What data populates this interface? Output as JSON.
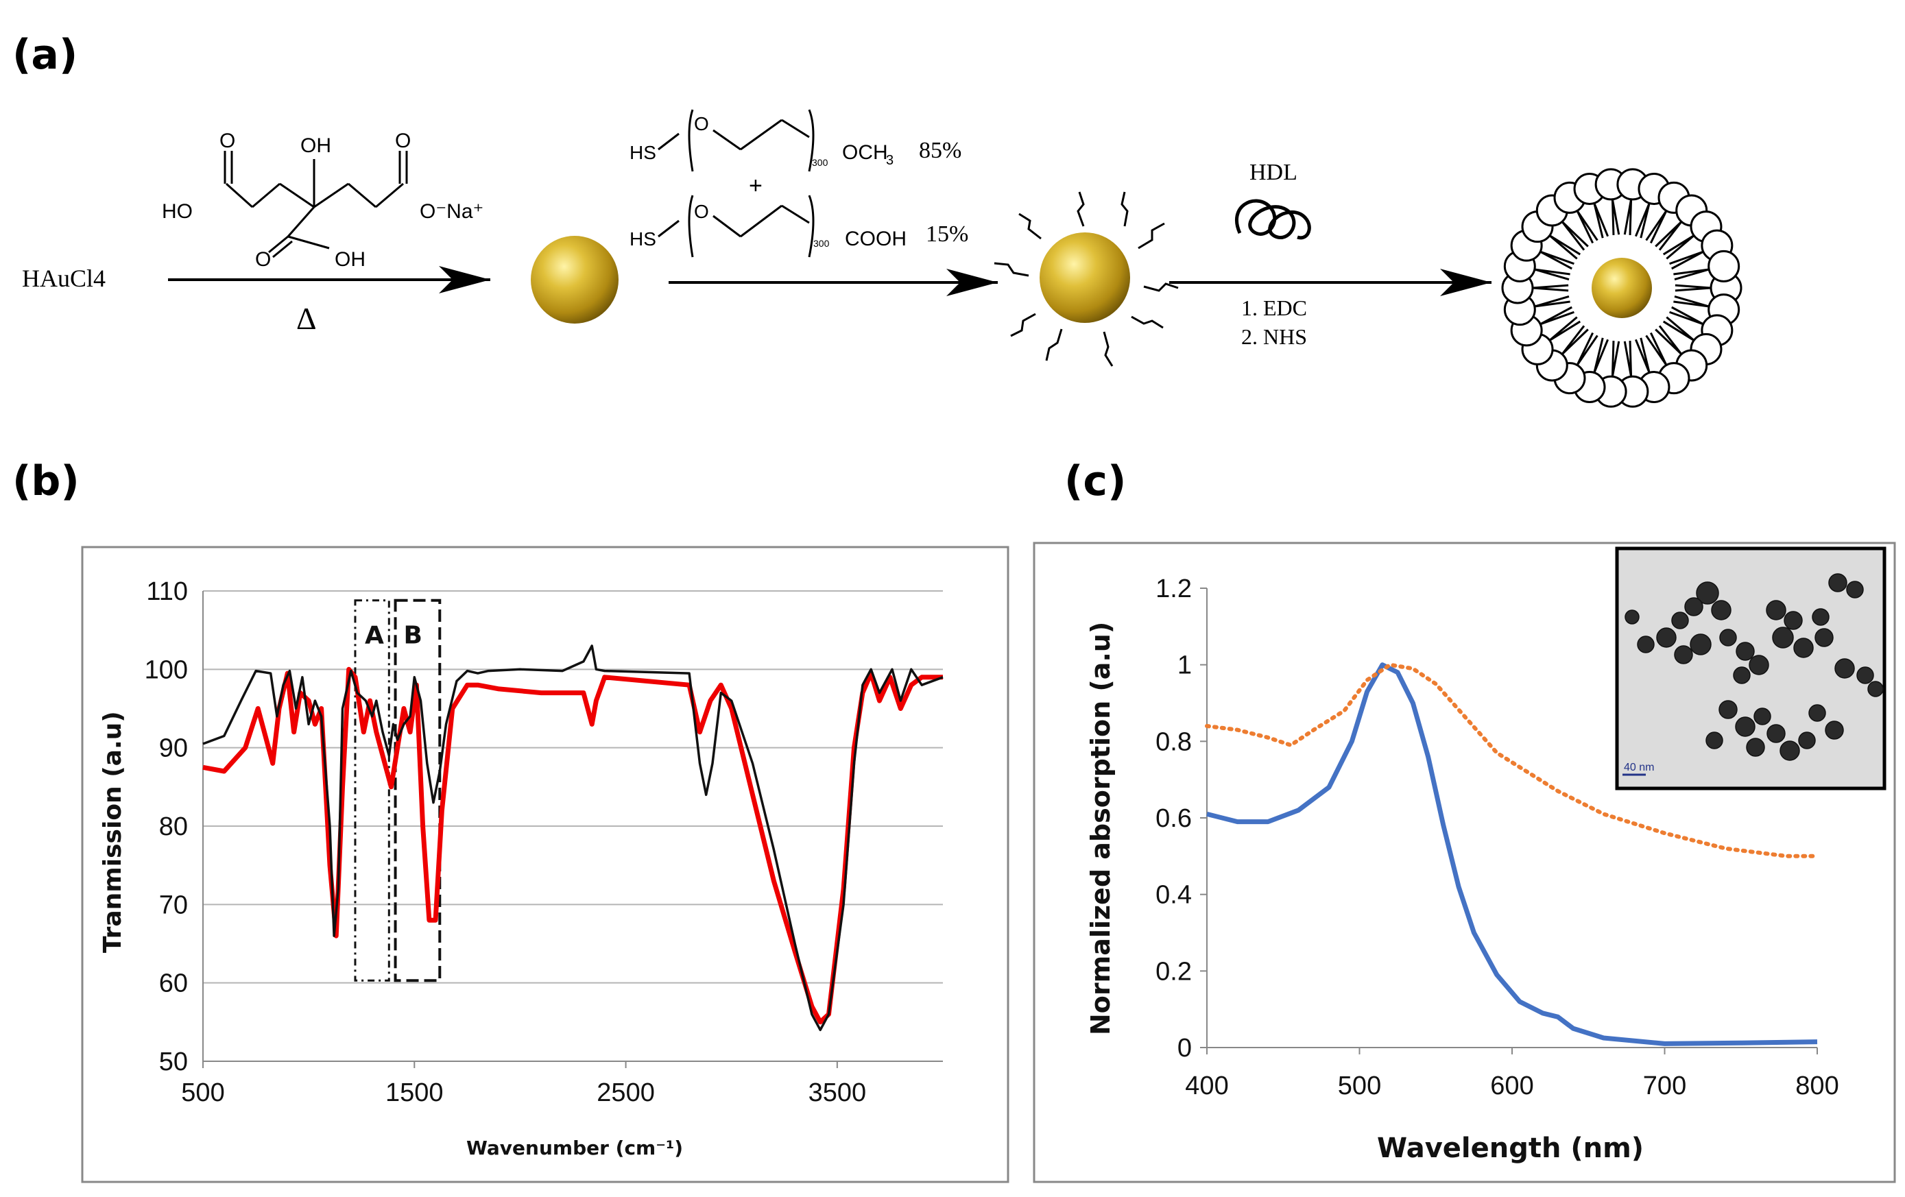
{
  "panels": {
    "a": "(a)",
    "b": "(b)",
    "c": "(c)"
  },
  "scheme": {
    "reactant": "HAuCl4",
    "heat": "Δ",
    "citrate": {
      "oh_top": "OH",
      "o_left": "O",
      "o_right": "O",
      "ho": "HO",
      "ona": "O⁻Na⁺",
      "o_bottom": "O",
      "oh_bottom": "OH"
    },
    "peg1": {
      "hs": "HS",
      "o": "O",
      "n": "300",
      "end": "OCH",
      "sub": "3",
      "pct": "85%"
    },
    "plus": "+",
    "peg2": {
      "hs": "HS",
      "o": "O",
      "n": "300",
      "end": "COOH",
      "pct": "15%"
    },
    "hdl": "HDL",
    "step1": "1. EDC",
    "step2": "2. NHS"
  },
  "chart_b": {
    "type": "line",
    "title": "",
    "xlabel": "Wavenumber (cm⁻¹)",
    "ylabel": "Tranmission (a.u)",
    "xlim": [
      500,
      4000
    ],
    "ylim": [
      50,
      110
    ],
    "xticks": [
      "500",
      "1500",
      "2500",
      "3500"
    ],
    "yticks": [
      "50",
      "60",
      "70",
      "80",
      "90",
      "100",
      "110"
    ],
    "box_a": "A",
    "box_b": "B",
    "series": [
      {
        "name": "black",
        "color": "#111111",
        "points": [
          [
            500,
            90.5
          ],
          [
            600,
            91.5
          ],
          [
            680,
            96
          ],
          [
            750,
            99.8
          ],
          [
            820,
            99.5
          ],
          [
            850,
            94
          ],
          [
            880,
            98
          ],
          [
            910,
            99.8
          ],
          [
            940,
            95
          ],
          [
            970,
            99
          ],
          [
            1000,
            93
          ],
          [
            1030,
            96
          ],
          [
            1060,
            94
          ],
          [
            1100,
            80
          ],
          [
            1120,
            66
          ],
          [
            1140,
            72
          ],
          [
            1160,
            95
          ],
          [
            1200,
            99.8
          ],
          [
            1230,
            97
          ],
          [
            1270,
            96
          ],
          [
            1300,
            94
          ],
          [
            1320,
            96
          ],
          [
            1350,
            92
          ],
          [
            1380,
            89
          ],
          [
            1400,
            93
          ],
          [
            1420,
            91
          ],
          [
            1450,
            93
          ],
          [
            1480,
            94
          ],
          [
            1500,
            99
          ],
          [
            1530,
            96
          ],
          [
            1560,
            88
          ],
          [
            1590,
            83
          ],
          [
            1620,
            87
          ],
          [
            1650,
            93
          ],
          [
            1700,
            98.5
          ],
          [
            1750,
            99.8
          ],
          [
            1800,
            99.5
          ],
          [
            1850,
            99.8
          ],
          [
            2000,
            100
          ],
          [
            2200,
            99.8
          ],
          [
            2300,
            101
          ],
          [
            2340,
            103
          ],
          [
            2360,
            100
          ],
          [
            2400,
            99.8
          ],
          [
            2800,
            99.5
          ],
          [
            2850,
            88
          ],
          [
            2880,
            84
          ],
          [
            2910,
            88
          ],
          [
            2950,
            97
          ],
          [
            3000,
            96
          ],
          [
            3100,
            88
          ],
          [
            3200,
            77
          ],
          [
            3300,
            65
          ],
          [
            3380,
            56
          ],
          [
            3420,
            54
          ],
          [
            3460,
            56
          ],
          [
            3530,
            70
          ],
          [
            3580,
            88
          ],
          [
            3620,
            98
          ],
          [
            3660,
            100
          ],
          [
            3700,
            97
          ],
          [
            3760,
            100
          ],
          [
            3800,
            96
          ],
          [
            3850,
            100
          ],
          [
            3900,
            98
          ],
          [
            4000,
            99
          ]
        ]
      },
      {
        "name": "red",
        "color": "#ee0000",
        "points": [
          [
            500,
            87.5
          ],
          [
            600,
            87
          ],
          [
            700,
            90
          ],
          [
            760,
            95
          ],
          [
            800,
            91
          ],
          [
            830,
            88
          ],
          [
            860,
            95
          ],
          [
            900,
            99.5
          ],
          [
            930,
            92
          ],
          [
            960,
            97
          ],
          [
            1000,
            96
          ],
          [
            1030,
            93
          ],
          [
            1060,
            95
          ],
          [
            1100,
            75
          ],
          [
            1130,
            66
          ],
          [
            1160,
            85
          ],
          [
            1190,
            100
          ],
          [
            1220,
            99
          ],
          [
            1260,
            92
          ],
          [
            1290,
            96
          ],
          [
            1320,
            92
          ],
          [
            1360,
            88
          ],
          [
            1390,
            85
          ],
          [
            1420,
            90
          ],
          [
            1450,
            95
          ],
          [
            1480,
            92
          ],
          [
            1510,
            98
          ],
          [
            1540,
            80
          ],
          [
            1570,
            68
          ],
          [
            1600,
            68
          ],
          [
            1630,
            82
          ],
          [
            1680,
            95
          ],
          [
            1750,
            98
          ],
          [
            1800,
            98
          ],
          [
            1900,
            97.5
          ],
          [
            2100,
            97
          ],
          [
            2300,
            97
          ],
          [
            2340,
            93
          ],
          [
            2360,
            96
          ],
          [
            2400,
            99
          ],
          [
            2800,
            98
          ],
          [
            2850,
            92
          ],
          [
            2900,
            96
          ],
          [
            2950,
            98
          ],
          [
            3000,
            95
          ],
          [
            3100,
            84
          ],
          [
            3200,
            73
          ],
          [
            3300,
            64
          ],
          [
            3380,
            57
          ],
          [
            3420,
            55
          ],
          [
            3460,
            56
          ],
          [
            3530,
            72
          ],
          [
            3580,
            90
          ],
          [
            3620,
            97
          ],
          [
            3660,
            99.5
          ],
          [
            3700,
            96
          ],
          [
            3750,
            99
          ],
          [
            3800,
            95
          ],
          [
            3850,
            98
          ],
          [
            3900,
            99
          ],
          [
            4000,
            99
          ]
        ]
      }
    ]
  },
  "chart_c": {
    "type": "line",
    "title": "",
    "xlabel": "Wavelength (nm)",
    "ylabel": "Normalized absorption (a.u)",
    "xlim": [
      400,
      800
    ],
    "ylim": [
      0,
      1.2
    ],
    "xticks": [
      "400",
      "500",
      "600",
      "700",
      "800"
    ],
    "yticks": [
      "0",
      "0.2",
      "0.4",
      "0.6",
      "0.8",
      "1",
      "1.2"
    ],
    "inset_scale": "40 nm",
    "series": [
      {
        "name": "solid",
        "color": "#4472c4",
        "points": [
          [
            400,
            0.61
          ],
          [
            420,
            0.59
          ],
          [
            440,
            0.59
          ],
          [
            460,
            0.62
          ],
          [
            480,
            0.68
          ],
          [
            495,
            0.8
          ],
          [
            505,
            0.93
          ],
          [
            515,
            1.0
          ],
          [
            525,
            0.98
          ],
          [
            535,
            0.9
          ],
          [
            545,
            0.76
          ],
          [
            555,
            0.58
          ],
          [
            565,
            0.42
          ],
          [
            575,
            0.3
          ],
          [
            590,
            0.19
          ],
          [
            605,
            0.12
          ],
          [
            620,
            0.09
          ],
          [
            630,
            0.08
          ],
          [
            640,
            0.05
          ],
          [
            660,
            0.025
          ],
          [
            700,
            0.01
          ],
          [
            750,
            0.012
          ],
          [
            800,
            0.015
          ]
        ]
      },
      {
        "name": "dotted",
        "color": "#ed7d31",
        "points": [
          [
            400,
            0.84
          ],
          [
            420,
            0.83
          ],
          [
            440,
            0.81
          ],
          [
            455,
            0.79
          ],
          [
            470,
            0.83
          ],
          [
            490,
            0.88
          ],
          [
            505,
            0.96
          ],
          [
            520,
            1.0
          ],
          [
            535,
            0.99
          ],
          [
            550,
            0.95
          ],
          [
            570,
            0.86
          ],
          [
            590,
            0.77
          ],
          [
            610,
            0.72
          ],
          [
            630,
            0.67
          ],
          [
            660,
            0.61
          ],
          [
            700,
            0.56
          ],
          [
            740,
            0.52
          ],
          [
            780,
            0.5
          ],
          [
            800,
            0.5
          ]
        ]
      }
    ]
  }
}
